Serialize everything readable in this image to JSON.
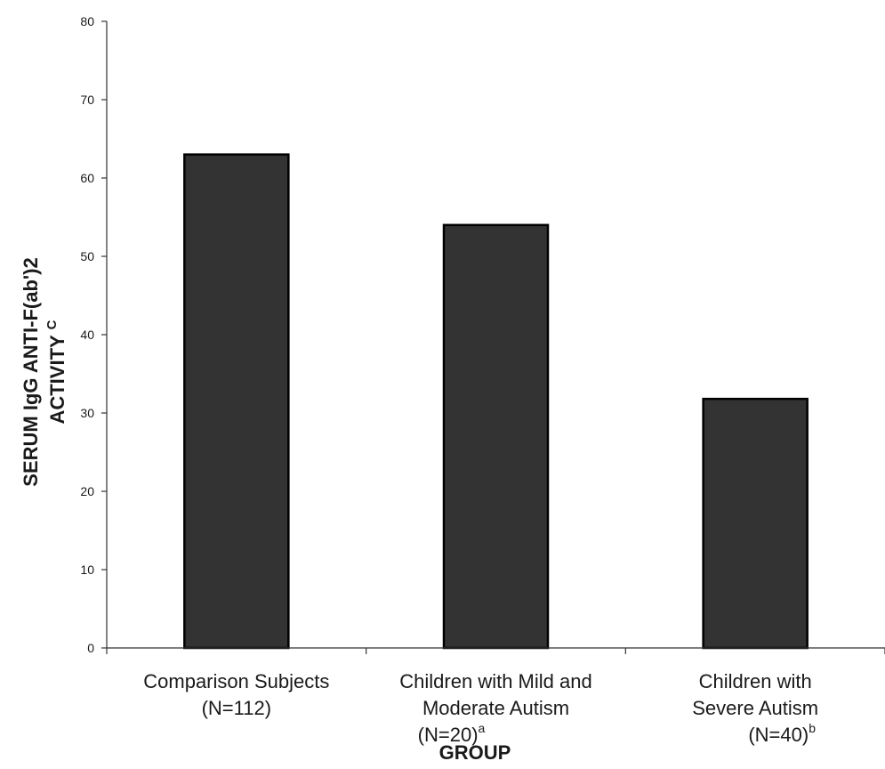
{
  "chart_data": {
    "type": "bar",
    "categories": [
      {
        "lines": [
          "Comparison Subjects",
          "(N=112)"
        ],
        "sup": ""
      },
      {
        "lines": [
          "Children with Mild and",
          "Moderate Autism",
          "(N=20)"
        ],
        "sup": "a"
      },
      {
        "lines": [
          "Children with",
          "Severe Autism",
          "(N=40)"
        ],
        "sup": "b"
      }
    ],
    "values": [
      63,
      54,
      31.8
    ],
    "ylabel_line1": "SERUM IgG ANTI-F(ab')2",
    "ylabel_line2": "ACTIVITY",
    "ylabel_sup": "C",
    "xlabel": "GROUP",
    "ylim": [
      0,
      80
    ],
    "yticks": [
      0,
      10,
      20,
      30,
      40,
      50,
      60,
      70,
      80
    ],
    "grid": false,
    "colors": {
      "bar": "#333333",
      "bar_edge": "#000000",
      "axis": "#333333"
    }
  }
}
